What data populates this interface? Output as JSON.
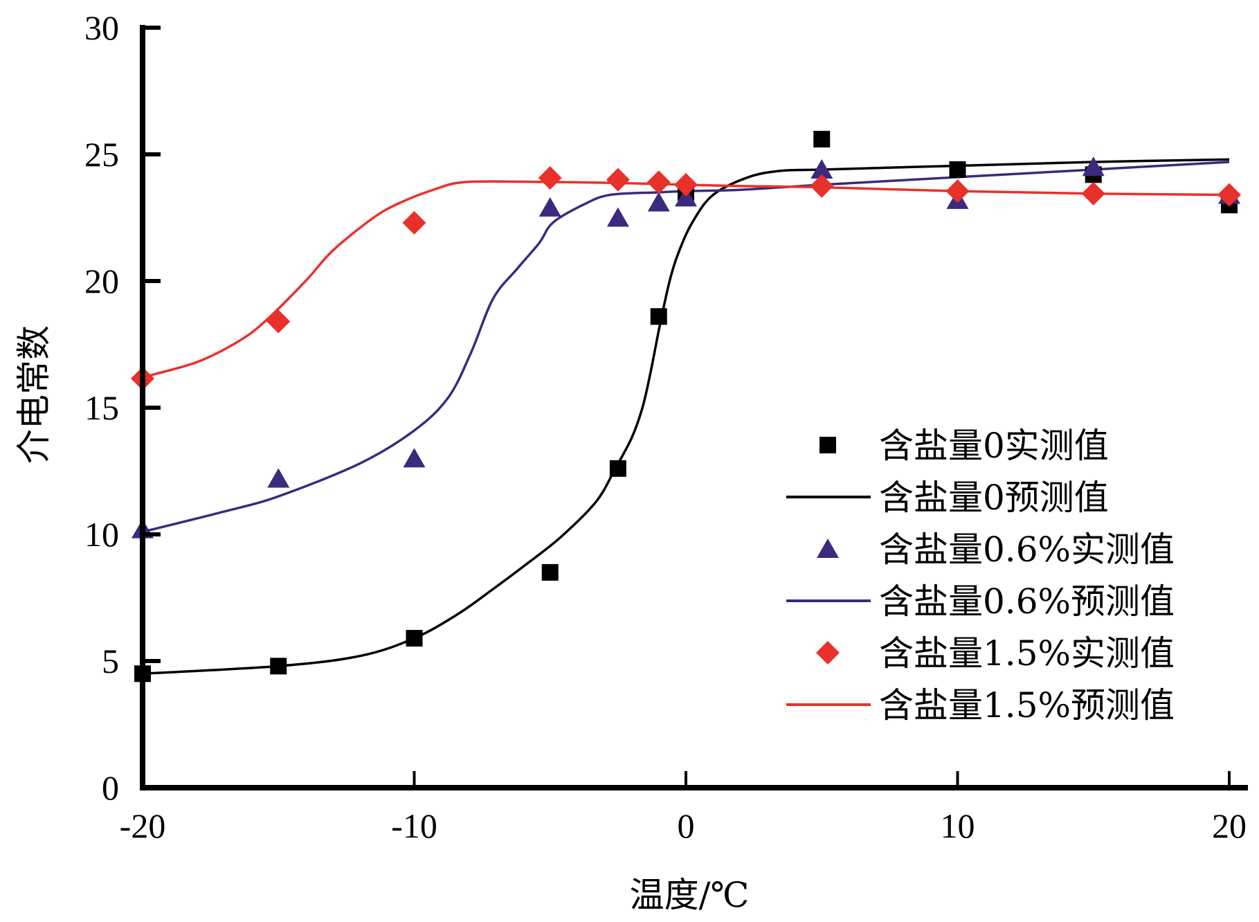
{
  "chart_data": {
    "type": "scatter",
    "title": "",
    "xlabel": "温度/℃",
    "ylabel": "介电常数",
    "xlim": [
      -20,
      20
    ],
    "ylim": [
      0,
      30
    ],
    "x_ticks": [
      -20,
      -10,
      0,
      10,
      20
    ],
    "y_ticks": [
      0,
      5,
      10,
      15,
      20,
      25,
      30
    ],
    "x_tick_labels": [
      "-20",
      "-10",
      "0",
      "10",
      "20"
    ],
    "y_tick_labels": [
      "0",
      "5",
      "10",
      "15",
      "20",
      "25",
      "30"
    ],
    "grid": false,
    "legend_position": "center-right",
    "series": [
      {
        "name": "含盐量0实测值",
        "kind": "scatter",
        "marker": "square",
        "color": "#000000",
        "x": [
          -20,
          -15,
          -10,
          -5,
          -2.5,
          -1,
          0,
          5,
          10,
          15,
          20
        ],
        "y": [
          4.5,
          4.8,
          5.9,
          8.5,
          12.6,
          18.6,
          23.5,
          25.6,
          24.4,
          24.2,
          23.0
        ]
      },
      {
        "name": "含盐量0预测值",
        "kind": "line",
        "color": "#000000",
        "x": [
          -20,
          -15,
          -12,
          -10,
          -8.4,
          -7.15,
          -5.9,
          -4.6,
          -3.3,
          -2.6,
          -2,
          -1.6,
          -1.3,
          -0.97,
          -0.6,
          -0.28,
          0.23,
          1.0,
          2.3,
          3.5,
          5,
          10,
          15,
          20
        ],
        "y": [
          4.5,
          4.8,
          5.2,
          5.9,
          6.85,
          7.8,
          8.8,
          9.9,
          11.3,
          12.6,
          13.8,
          15.0,
          16.4,
          18.2,
          20.0,
          21.1,
          22.3,
          23.4,
          24.1,
          24.35,
          24.4,
          24.55,
          24.7,
          24.8
        ]
      },
      {
        "name": "含盐量0.6%实测值",
        "kind": "scatter",
        "marker": "triangle",
        "color": "#3b2a7e",
        "x": [
          -20,
          -15,
          -10,
          -5,
          -2.5,
          -1,
          0,
          5,
          10,
          15,
          20
        ],
        "y": [
          10.2,
          12.2,
          13.0,
          22.9,
          22.5,
          23.1,
          23.3,
          24.4,
          23.2,
          24.5,
          23.4
        ]
      },
      {
        "name": "含盐量0.6%预测值",
        "kind": "line",
        "color": "#3b2a7e",
        "x": [
          -20,
          -17,
          -15,
          -12,
          -10,
          -8.75,
          -7.9,
          -7.1,
          -6.2,
          -5.4,
          -4.9,
          -3.8,
          -2.8,
          -1,
          0,
          2,
          5,
          10,
          15,
          20
        ],
        "y": [
          10.1,
          10.9,
          11.5,
          12.8,
          14.1,
          15.4,
          17.2,
          19.3,
          20.5,
          21.5,
          22.3,
          23.0,
          23.4,
          23.5,
          23.55,
          23.6,
          23.8,
          24.1,
          24.4,
          24.7
        ]
      },
      {
        "name": "含盐量1.5%实测值",
        "kind": "scatter",
        "marker": "diamond",
        "color": "#e8312b",
        "x": [
          -20,
          -15,
          -10,
          -5,
          -2.5,
          -1,
          0,
          5,
          10,
          15,
          20
        ],
        "y": [
          16.15,
          18.4,
          22.3,
          24.07,
          24.0,
          23.9,
          23.8,
          23.75,
          23.55,
          23.45,
          23.4
        ]
      },
      {
        "name": "含盐量1.5%预测值",
        "kind": "line",
        "color": "#e8312b",
        "x": [
          -20,
          -18,
          -16.5,
          -15.5,
          -14,
          -13,
          -11.5,
          -10.5,
          -9.3,
          -8.2,
          -6,
          -3,
          0,
          2,
          5,
          10,
          15,
          20
        ],
        "y": [
          16.2,
          16.8,
          17.6,
          18.4,
          20.0,
          21.2,
          22.5,
          23.1,
          23.6,
          23.9,
          23.92,
          23.88,
          23.8,
          23.75,
          23.7,
          23.55,
          23.45,
          23.4
        ]
      }
    ]
  }
}
